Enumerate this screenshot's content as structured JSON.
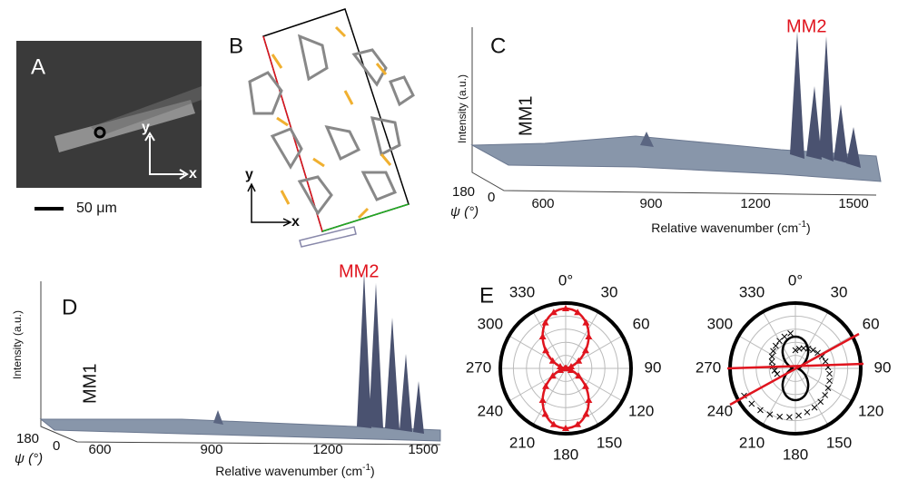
{
  "panels": {
    "a": {
      "label": "A",
      "axis_y": "y",
      "axis_x": "x",
      "scale_bar": "50 μm"
    },
    "b": {
      "label": "B",
      "axis_y": "y",
      "axis_x": "x"
    },
    "c": {
      "label": "C",
      "peak_high": "MM2",
      "peak_low": "MM1",
      "z_label": "Intensity (a.u.)",
      "psi_ticks": [
        "180",
        "0"
      ],
      "psi_label": "ψ (°)",
      "x_ticks": [
        "600",
        "900",
        "1200",
        "1500"
      ],
      "x_label": {
        "text": "Relative wavenumber (cm",
        "sup": "-1",
        "end": ")"
      }
    },
    "d": {
      "label": "D",
      "peak_high": "MM2",
      "peak_low": "MM1",
      "z_label": "Intensity (a.u.)",
      "psi_ticks": [
        "180",
        "0"
      ],
      "psi_label": "ψ (°)",
      "x_ticks": [
        "600",
        "900",
        "1200",
        "1500"
      ],
      "x_label": {
        "text": "Relative wavenumber (cm",
        "sup": "-1",
        "end": ")"
      }
    },
    "e": {
      "label": "E",
      "angles": [
        "0°",
        "30",
        "60",
        "90",
        "120",
        "150",
        "180",
        "210",
        "240",
        "270",
        "300",
        "330"
      ]
    }
  }
}
